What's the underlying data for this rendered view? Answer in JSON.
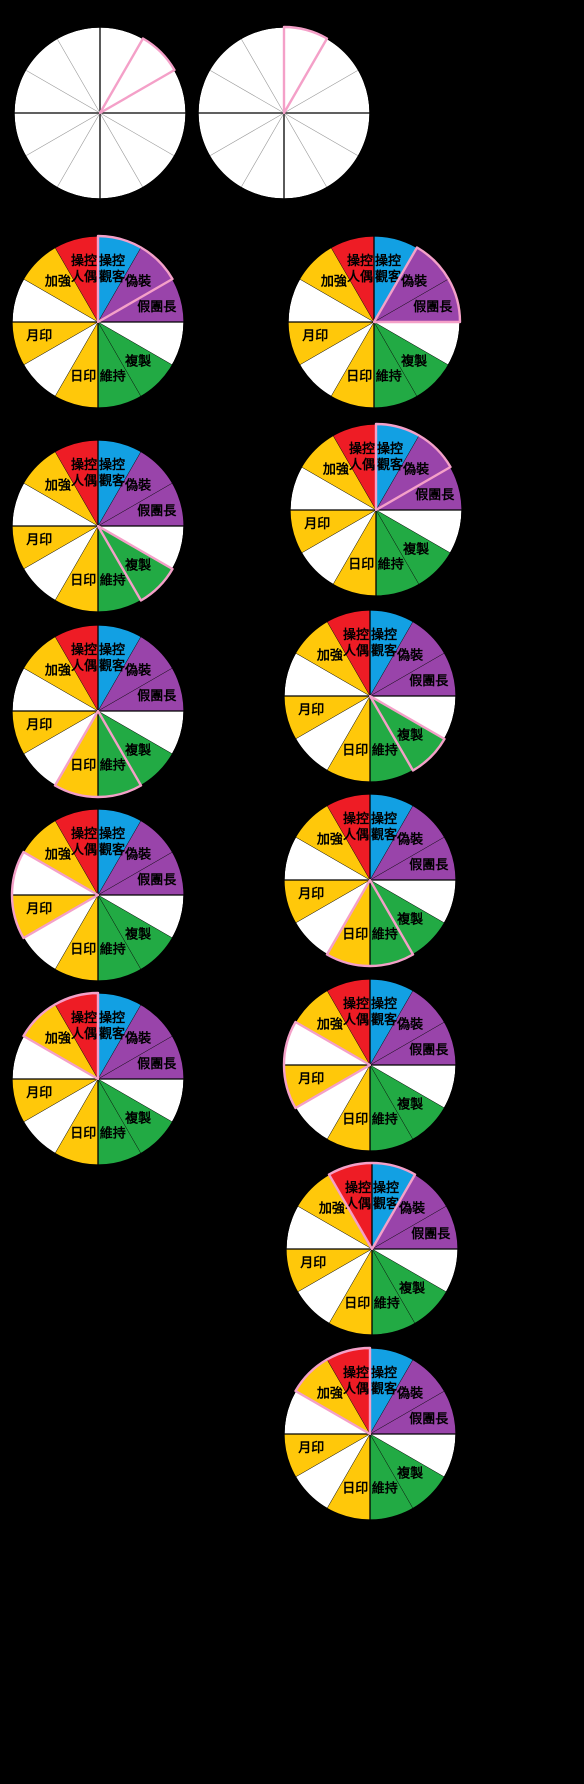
{
  "colors": {
    "background": "#000000",
    "blue": "#12a0e3",
    "purple": "#9944aa",
    "green": "#22aa44",
    "yellow": "#ffc80a",
    "red": "#ee1c25",
    "white": "#ffffff",
    "highlight": "#f4a0c8"
  },
  "labels": {
    "blue": [
      "操控",
      "觀客"
    ],
    "purple_top": "偽裝",
    "purple_bottom": "假團長",
    "green_right": "複製",
    "green_left": "維持",
    "yellow_bottom": "日印",
    "yellow_left": "月印",
    "yellow_top": "加強",
    "red": [
      "操控",
      "人偶"
    ]
  },
  "wheels": [
    {
      "id": "blank-1",
      "blank": true,
      "highlight": [
        [
          1,
          2
        ]
      ]
    },
    {
      "id": "blank-2",
      "blank": true,
      "highlight": [
        [
          0,
          1
        ]
      ]
    },
    {
      "id": "left-1",
      "blank": false,
      "highlight": [
        [
          0,
          2
        ]
      ]
    },
    {
      "id": "right-1",
      "blank": false,
      "highlight": [
        [
          1,
          3
        ]
      ]
    },
    {
      "id": "left-2",
      "blank": false,
      "highlight": [
        [
          4,
          5
        ]
      ]
    },
    {
      "id": "right-2",
      "blank": false,
      "highlight": [
        [
          0,
          2
        ]
      ]
    },
    {
      "id": "left-3",
      "blank": false,
      "highlight": [
        [
          5,
          7
        ]
      ]
    },
    {
      "id": "right-3",
      "blank": false,
      "highlight": [
        [
          4,
          5
        ]
      ]
    },
    {
      "id": "left-4",
      "blank": false,
      "highlight": [
        [
          8,
          10
        ]
      ]
    },
    {
      "id": "right-4",
      "blank": false,
      "highlight": [
        [
          5,
          7
        ]
      ]
    },
    {
      "id": "left-5",
      "blank": false,
      "highlight": [
        [
          10,
          0
        ]
      ]
    },
    {
      "id": "right-5",
      "blank": false,
      "highlight": [
        [
          8,
          10
        ]
      ]
    },
    {
      "id": "right-6",
      "blank": false,
      "highlight": [
        [
          11,
          1
        ]
      ]
    },
    {
      "id": "right-7",
      "blank": false,
      "highlight": [
        [
          10,
          12
        ]
      ]
    }
  ]
}
